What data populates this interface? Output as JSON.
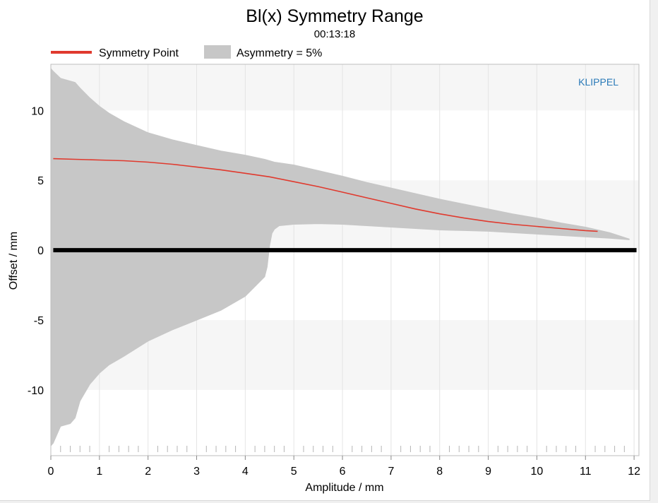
{
  "chart_data": {
    "type": "area",
    "title": "Bl(x) Symmetry Range",
    "subtitle": "00:13:18",
    "xlabel": "Amplitude / mm",
    "ylabel": "Offset / mm",
    "xlim": [
      0,
      12.1
    ],
    "ylim": [
      -14.7,
      13.3
    ],
    "xticks": [
      0,
      1,
      2,
      3,
      4,
      5,
      6,
      7,
      8,
      9,
      10,
      11,
      12
    ],
    "yticks": [
      10,
      5,
      0,
      -5,
      -10
    ],
    "grid": true,
    "legend_position": "top-left",
    "watermark": "KLIPPEL",
    "colors": {
      "symmetry_line": "#e03a2e",
      "asymmetry_fill": "#c7c7c7",
      "zero_line": "#000000",
      "watermark": "#2a7ab8"
    },
    "series": [
      {
        "name": "Symmetry Point",
        "kind": "line",
        "x": [
          0.05,
          0.5,
          1.0,
          1.5,
          2.0,
          2.5,
          3.0,
          3.5,
          4.0,
          4.5,
          5.0,
          5.5,
          6.0,
          6.5,
          7.0,
          7.5,
          8.0,
          8.5,
          9.0,
          9.5,
          10.0,
          10.5,
          11.0,
          11.25
        ],
        "values": [
          6.55,
          6.5,
          6.45,
          6.4,
          6.3,
          6.15,
          5.95,
          5.75,
          5.5,
          5.25,
          4.9,
          4.55,
          4.15,
          3.75,
          3.35,
          2.95,
          2.6,
          2.3,
          2.05,
          1.85,
          1.7,
          1.55,
          1.4,
          1.35
        ]
      },
      {
        "name": "Asymmetry = 5%",
        "kind": "band",
        "x": [
          0.0,
          0.05,
          0.2,
          0.4,
          0.5,
          0.6,
          0.8,
          1.0,
          1.2,
          1.5,
          2.0,
          2.5,
          3.0,
          3.5,
          4.0,
          4.4,
          4.45,
          4.5,
          4.55,
          4.6,
          4.7,
          5.0,
          5.5,
          6.0,
          6.5,
          7.0,
          7.5,
          8.0,
          8.5,
          9.0,
          9.5,
          10.0,
          10.5,
          11.0,
          11.5,
          11.9
        ],
        "upper": [
          13.0,
          12.8,
          12.3,
          12.1,
          12.0,
          11.6,
          10.9,
          10.3,
          9.8,
          9.2,
          8.4,
          7.9,
          7.5,
          7.1,
          6.8,
          6.5,
          6.45,
          6.4,
          6.35,
          6.3,
          6.25,
          6.1,
          5.7,
          5.3,
          4.85,
          4.45,
          4.05,
          3.65,
          3.3,
          2.95,
          2.6,
          2.3,
          1.95,
          1.65,
          1.25,
          0.8
        ],
        "lower": [
          -14.0,
          -13.8,
          -12.6,
          -12.4,
          -12.0,
          -10.8,
          -9.6,
          -8.8,
          -8.2,
          -7.6,
          -6.5,
          -5.7,
          -5.0,
          -4.3,
          -3.3,
          -1.9,
          -1.2,
          0.3,
          1.2,
          1.5,
          1.75,
          1.85,
          1.9,
          1.85,
          1.75,
          1.65,
          1.55,
          1.45,
          1.4,
          1.35,
          1.25,
          1.15,
          1.05,
          0.95,
          0.85,
          0.75
        ]
      }
    ]
  }
}
